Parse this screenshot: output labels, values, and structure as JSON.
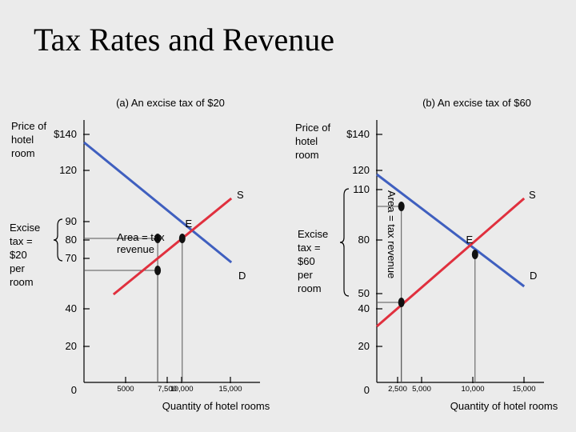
{
  "title": "Tax Rates and Revenue",
  "colors": {
    "demand": "#3f5fbf",
    "supply": "#e0303e",
    "axis": "#000000",
    "guide": "#555555",
    "background": "#ebebeb"
  },
  "chart_data": [
    {
      "type": "line",
      "subtitle": "(a) An excise tax of $20",
      "ylabel": "Price of hotel room",
      "xlabel": "Quantity of hotel rooms",
      "y_axis_tick_labels": [
        "$140",
        "120",
        "90",
        "80",
        "70",
        "40",
        "20",
        "0"
      ],
      "x_axis_tick_labels": [
        "5000",
        "7,500",
        "10,000",
        "15,000"
      ],
      "xlim": [
        0,
        16500
      ],
      "ylim": [
        0,
        155
      ],
      "grid": false,
      "series": [
        {
          "name": "D",
          "x": [
            0,
            15000
          ],
          "y": [
            150,
            75
          ]
        },
        {
          "name": "S",
          "x": [
            3000,
            15000
          ],
          "y": [
            55,
            115
          ]
        }
      ],
      "points": [
        {
          "label": "E",
          "x": 10000,
          "y": 90
        },
        {
          "label": "",
          "x": 7500,
          "y": 90
        },
        {
          "label": "",
          "x": 7500,
          "y": 70
        }
      ],
      "annotations": [
        "Excise tax = $20 per room",
        "Area = tax revenue"
      ],
      "legend": "none"
    },
    {
      "type": "line",
      "subtitle": "(b) An excise tax of $60",
      "ylabel": "Price of hotel room",
      "xlabel": "Quantity of hotel rooms",
      "y_axis_tick_labels": [
        "$140",
        "120",
        "110",
        "80",
        "50",
        "40",
        "20",
        "0"
      ],
      "x_axis_tick_labels": [
        "2,500",
        "5,000",
        "10,000",
        "15,000"
      ],
      "xlim": [
        0,
        16500
      ],
      "ylim": [
        0,
        155
      ],
      "grid": false,
      "series": [
        {
          "name": "D",
          "x": [
            0,
            15000
          ],
          "y": [
            130,
            60
          ]
        },
        {
          "name": "S",
          "x": [
            0,
            15000
          ],
          "y": [
            35,
            115
          ]
        }
      ],
      "points": [
        {
          "label": "E",
          "x": 10000,
          "y": 80
        },
        {
          "label": "",
          "x": 2500,
          "y": 110
        },
        {
          "label": "",
          "x": 2500,
          "y": 50
        }
      ],
      "annotations": [
        "Excise tax = $60 per room",
        "Area = tax revenue"
      ],
      "legend": "none"
    }
  ]
}
